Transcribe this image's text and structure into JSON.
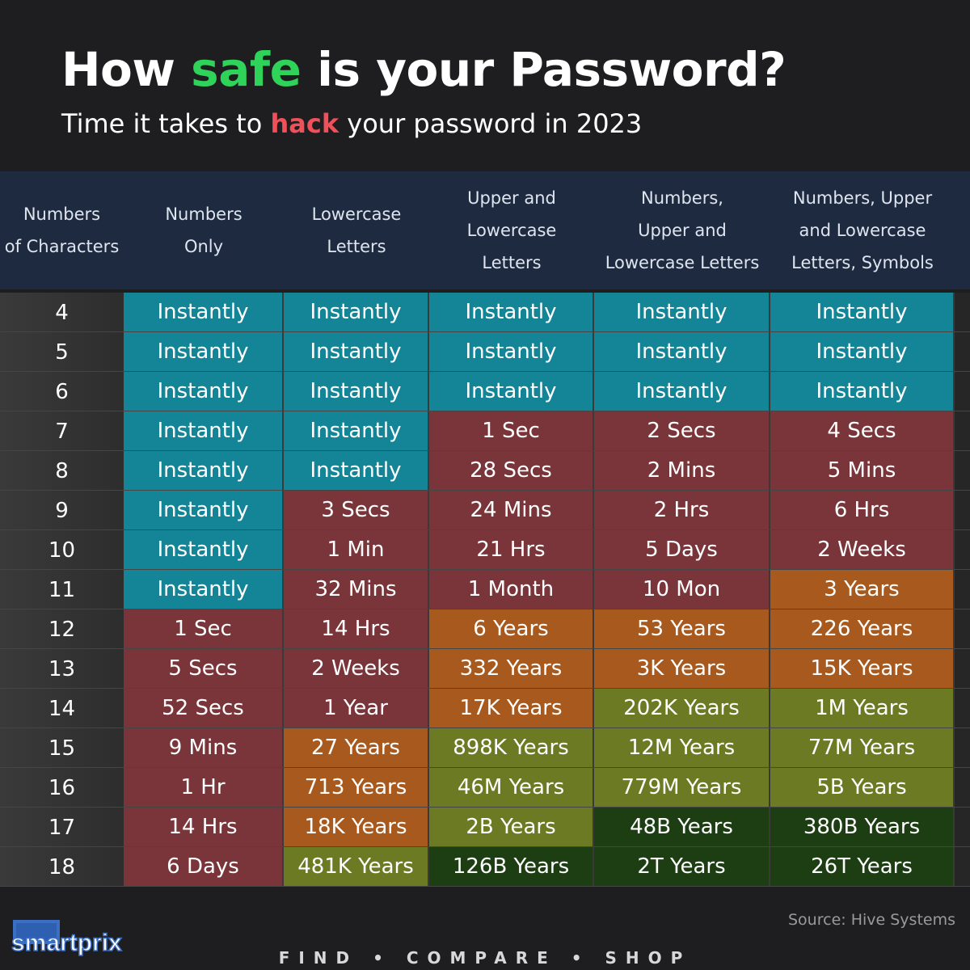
{
  "header": {
    "title_pre": "How ",
    "title_highlight": "safe",
    "title_post": " is your Password?",
    "subtitle_pre": "Time it takes to ",
    "subtitle_highlight": "hack",
    "subtitle_post": " your password in 2023"
  },
  "colors": {
    "instant": "#148596",
    "short": "#7a353a",
    "years": "#a85a1e",
    "long": "#6d7a24",
    "very_long": "#1d3e12",
    "title_accent": "#2fd35a",
    "subtitle_accent": "#f0505a"
  },
  "chart_data": {
    "type": "table",
    "columns": [
      [
        "Numbers",
        "of Characters"
      ],
      [
        "Numbers",
        "Only"
      ],
      [
        "Lowercase",
        "Letters"
      ],
      [
        "Upper and",
        "Lowercase",
        "Letters"
      ],
      [
        "Numbers,",
        "Upper and",
        "Lowercase Letters"
      ],
      [
        "Numbers, Upper",
        "and Lowercase",
        "Letters, Symbols"
      ]
    ],
    "rows": [
      {
        "chars": "4",
        "values": [
          "Instantly",
          "Instantly",
          "Instantly",
          "Instantly",
          "Instantly"
        ],
        "levels": [
          "instant",
          "instant",
          "instant",
          "instant",
          "instant"
        ]
      },
      {
        "chars": "5",
        "values": [
          "Instantly",
          "Instantly",
          "Instantly",
          "Instantly",
          "Instantly"
        ],
        "levels": [
          "instant",
          "instant",
          "instant",
          "instant",
          "instant"
        ]
      },
      {
        "chars": "6",
        "values": [
          "Instantly",
          "Instantly",
          "Instantly",
          "Instantly",
          "Instantly"
        ],
        "levels": [
          "instant",
          "instant",
          "instant",
          "instant",
          "instant"
        ]
      },
      {
        "chars": "7",
        "values": [
          "Instantly",
          "Instantly",
          "1 Sec",
          "2 Secs",
          "4 Secs"
        ],
        "levels": [
          "instant",
          "instant",
          "short",
          "short",
          "short"
        ]
      },
      {
        "chars": "8",
        "values": [
          "Instantly",
          "Instantly",
          "28 Secs",
          "2 Mins",
          "5 Mins"
        ],
        "levels": [
          "instant",
          "instant",
          "short",
          "short",
          "short"
        ]
      },
      {
        "chars": "9",
        "values": [
          "Instantly",
          "3 Secs",
          "24 Mins",
          "2 Hrs",
          "6 Hrs"
        ],
        "levels": [
          "instant",
          "short",
          "short",
          "short",
          "short"
        ]
      },
      {
        "chars": "10",
        "values": [
          "Instantly",
          "1 Min",
          "21 Hrs",
          "5 Days",
          "2 Weeks"
        ],
        "levels": [
          "instant",
          "short",
          "short",
          "short",
          "short"
        ]
      },
      {
        "chars": "11",
        "values": [
          "Instantly",
          "32 Mins",
          "1 Month",
          "10 Mon",
          "3 Years"
        ],
        "levels": [
          "instant",
          "short",
          "short",
          "short",
          "years"
        ]
      },
      {
        "chars": "12",
        "values": [
          "1 Sec",
          "14 Hrs",
          "6 Years",
          "53 Years",
          "226 Years"
        ],
        "levels": [
          "short",
          "short",
          "years",
          "years",
          "years"
        ]
      },
      {
        "chars": "13",
        "values": [
          "5 Secs",
          "2 Weeks",
          "332 Years",
          "3K Years",
          "15K Years"
        ],
        "levels": [
          "short",
          "short",
          "years",
          "years",
          "years"
        ]
      },
      {
        "chars": "14",
        "values": [
          "52 Secs",
          "1 Year",
          "17K Years",
          "202K Years",
          "1M Years"
        ],
        "levels": [
          "short",
          "short",
          "years",
          "long",
          "long"
        ]
      },
      {
        "chars": "15",
        "values": [
          "9 Mins",
          "27 Years",
          "898K Years",
          "12M Years",
          "77M Years"
        ],
        "levels": [
          "short",
          "years",
          "long",
          "long",
          "long"
        ]
      },
      {
        "chars": "16",
        "values": [
          "1 Hr",
          "713 Years",
          "46M Years",
          "779M Years",
          "5B Years"
        ],
        "levels": [
          "short",
          "years",
          "long",
          "long",
          "long"
        ]
      },
      {
        "chars": "17",
        "values": [
          "14 Hrs",
          "18K Years",
          "2B Years",
          "48B Years",
          "380B Years"
        ],
        "levels": [
          "short",
          "years",
          "long",
          "very_long",
          "very_long"
        ]
      },
      {
        "chars": "18",
        "values": [
          "6 Days",
          "481K Years",
          "126B Years",
          "2T Years",
          "26T Years"
        ],
        "levels": [
          "short",
          "long",
          "very_long",
          "very_long",
          "very_long"
        ]
      }
    ]
  },
  "footer": {
    "source": "Source: Hive Systems",
    "logo": "smartprix",
    "tagline": "FIND  •  COMPARE  •  SHOP"
  }
}
